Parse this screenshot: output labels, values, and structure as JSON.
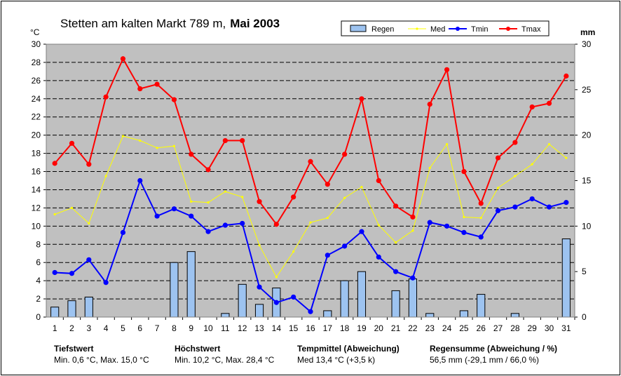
{
  "title": {
    "place": "Stetten am kalten Markt  789 m,",
    "period": "Mai 2003"
  },
  "units": {
    "left": "°C",
    "right": "mm"
  },
  "legend": [
    {
      "key": "rain",
      "label": "Regen",
      "color": "#9dc3f0"
    },
    {
      "key": "tmed",
      "label": "Med",
      "color": "#ffff00"
    },
    {
      "key": "tmin",
      "label": "Tmin",
      "color": "#0000ff"
    },
    {
      "key": "tmax",
      "label": "Tmax",
      "color": "#ff0000"
    }
  ],
  "chart_data": {
    "type": "bar+line",
    "categories": [
      "1",
      "2",
      "3",
      "4",
      "5",
      "6",
      "7",
      "8",
      "9",
      "10",
      "11",
      "12",
      "13",
      "14",
      "15",
      "16",
      "17",
      "18",
      "19",
      "20",
      "21",
      "22",
      "23",
      "24",
      "25",
      "26",
      "27",
      "28",
      "29",
      "30",
      "31"
    ],
    "y_left": {
      "label": "°C",
      "min": 0,
      "max": 30,
      "step": 2
    },
    "y_right": {
      "label": "mm",
      "min": 0,
      "max": 30,
      "step": 5
    },
    "grid": true,
    "legend_position": "top-right",
    "series": [
      {
        "name": "Regen",
        "type": "bar",
        "axis": "right",
        "color": "#9dc3f0",
        "values": [
          1.1,
          1.8,
          2.2,
          0,
          0,
          0,
          0,
          6.0,
          7.2,
          0,
          0.4,
          3.6,
          1.4,
          3.2,
          0,
          0,
          0.7,
          4.0,
          5.0,
          0,
          2.9,
          4.2,
          0.4,
          0,
          0.7,
          2.5,
          0,
          0.4,
          0,
          0,
          8.6
        ]
      },
      {
        "name": "Med",
        "type": "line",
        "axis": "left",
        "color": "#ffff00",
        "values": [
          11.3,
          12.0,
          10.3,
          15.5,
          19.9,
          19.4,
          18.6,
          18.8,
          12.7,
          12.6,
          13.8,
          13.2,
          7.9,
          4.4,
          7.2,
          10.4,
          10.9,
          13.1,
          14.3,
          10.1,
          8.2,
          9.5,
          16.4,
          19.0,
          11.0,
          10.9,
          14.2,
          15.5,
          16.8,
          19.0,
          17.5
        ]
      },
      {
        "name": "Tmin",
        "type": "line",
        "axis": "left",
        "color": "#0000ff",
        "values": [
          4.9,
          4.8,
          6.3,
          3.8,
          9.3,
          15.0,
          11.1,
          11.9,
          11.1,
          9.4,
          10.1,
          10.3,
          3.3,
          1.6,
          2.2,
          0.6,
          6.8,
          7.8,
          9.4,
          6.6,
          5.0,
          4.3,
          10.4,
          10.0,
          9.3,
          8.8,
          11.7,
          12.1,
          13.0,
          12.1,
          12.6
        ]
      },
      {
        "name": "Tmax",
        "type": "line",
        "axis": "left",
        "color": "#ff0000",
        "values": [
          16.9,
          19.1,
          16.8,
          24.2,
          28.4,
          25.1,
          25.6,
          23.9,
          17.9,
          16.2,
          19.4,
          19.4,
          12.7,
          10.2,
          13.2,
          17.1,
          14.6,
          17.9,
          24.0,
          15.0,
          12.2,
          11.0,
          23.4,
          27.2,
          16.0,
          12.5,
          17.5,
          19.2,
          23.1,
          23.5,
          26.5
        ]
      }
    ]
  },
  "stats": [
    {
      "key": "tief",
      "heading": "Tiefstwert",
      "value": "Min. 0,6 °C,  Max. 15,0 °C"
    },
    {
      "key": "hoch",
      "heading": "Höchstwert",
      "value": "Min. 10,2 °C,  Max. 28,4 °C"
    },
    {
      "key": "mittel",
      "heading": "Tempmittel (Abweichung)",
      "value": "Med 13,4 °C (+3,5 k)"
    },
    {
      "key": "regen",
      "heading": "Regensumme (Abweichung / %)",
      "value": "56,5 mm (-29,1 mm / 66,0 %)"
    }
  ]
}
